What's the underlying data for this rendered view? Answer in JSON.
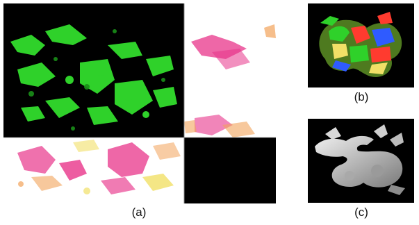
{
  "figure": {
    "caption_a": "(a)",
    "caption_b": "(b)",
    "caption_c": "(c)"
  },
  "colors": {
    "background": "#ffffff",
    "panel_black": "#000000",
    "green_map": "#2fd12a",
    "pink_map": "#e8348a",
    "orange_map": "#f2a35a",
    "yellow_map": "#f1e067"
  }
}
